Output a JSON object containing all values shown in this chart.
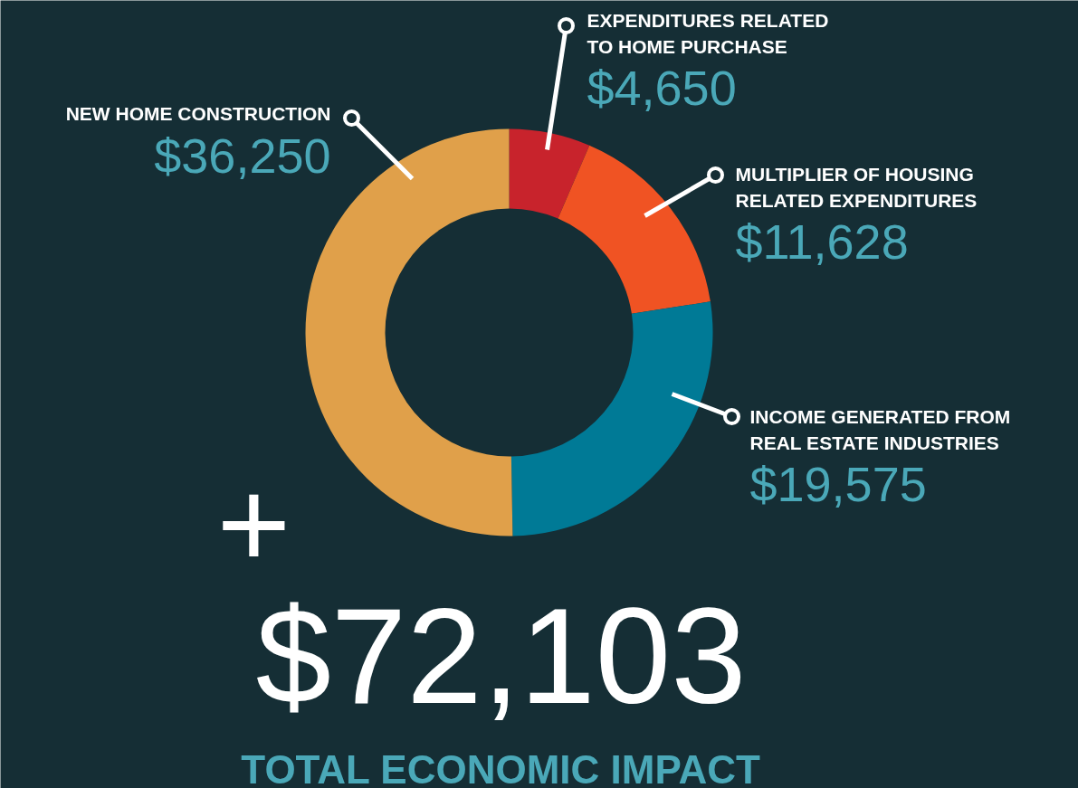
{
  "chart_data": {
    "type": "donut",
    "categories": [
      "EXPENDITURES RELATED TO HOME PURCHASE",
      "MULTIPLIER OF HOUSING RELATED EXPENDITURES",
      "INCOME GENERATED FROM REAL ESTATE INDUSTRIES",
      "NEW HOME CONSTRUCTION"
    ],
    "values": [
      4650,
      11628,
      19575,
      36250
    ],
    "colors": [
      "#c8232c",
      "#f05323",
      "#007a96",
      "#e0a04a"
    ],
    "value_labels": [
      "$4,650",
      "$11,628",
      "$19,575",
      "$36,250"
    ],
    "annotations": [
      "+",
      "$72,103",
      "TOTAL ECONOMIC IMPACT"
    ]
  }
}
